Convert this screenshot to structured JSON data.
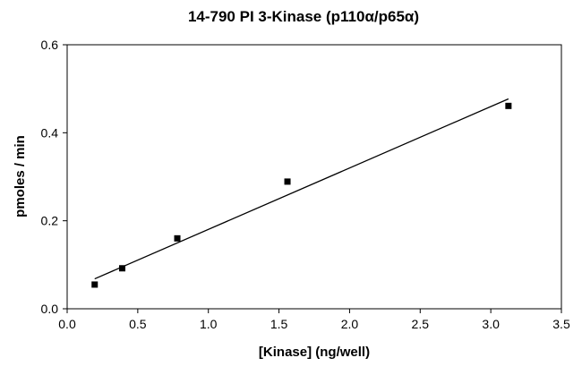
{
  "chart_data": {
    "type": "scatter",
    "title": "14-790 PI 3-Kinase (p110α/p65α)",
    "xlabel": "[Kinase] (ng/well)",
    "ylabel": "pmoles / min",
    "xlim": [
      0,
      3.5
    ],
    "ylim": [
      0,
      0.6
    ],
    "xticks": [
      "0.0",
      "0.5",
      "1.0",
      "1.5",
      "2.0",
      "2.5",
      "3.0",
      "3.5"
    ],
    "yticks": [
      "0.0",
      "0.2",
      "0.4",
      "0.6"
    ],
    "grid": false,
    "series": [
      {
        "marker": "square",
        "color": "#000000",
        "x": [
          0.195,
          0.39,
          0.78,
          1.56,
          3.125
        ],
        "y": [
          0.055,
          0.092,
          0.16,
          0.289,
          0.461
        ]
      }
    ],
    "trendline": {
      "type": "linear",
      "color": "#000000",
      "x": [
        0.195,
        3.125
      ],
      "y": [
        0.068,
        0.477
      ]
    }
  }
}
